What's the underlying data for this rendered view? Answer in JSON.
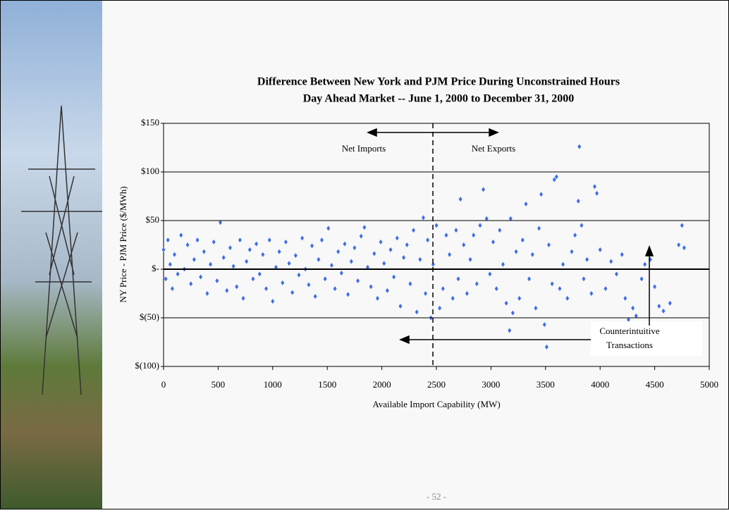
{
  "chart_data": {
    "type": "scatter",
    "title": "Difference Between New York and PJM Price During Unconstrained Hours",
    "subtitle": "Day Ahead Market -- June 1, 2000 to December 31, 2000",
    "x_label": "Available Import Capability (MW)",
    "y_label": "NY Price - PJM Price ($/MWh)",
    "annotations": [
      "Net Imports",
      "Net Exports",
      "Counterintuitive",
      "Transactions"
    ],
    "color": "#3f6fe8",
    "grid": true,
    "xlim": [
      0,
      5000
    ],
    "xticks": [
      0,
      500,
      1000,
      1500,
      2000,
      2500,
      3000,
      3500,
      4000,
      4500,
      5000
    ],
    "ylim": [
      -100,
      150
    ],
    "yticks": [
      {
        "value": 150,
        "label": "$150"
      },
      {
        "value": 100,
        "label": "$100"
      },
      {
        "value": 50,
        "label": "$50"
      },
      {
        "value": 0,
        "label": "$-"
      },
      {
        "value": -50,
        "label": "$(50)"
      },
      {
        "value": -100,
        "label": "$(100)"
      }
    ],
    "x": [
      0,
      20,
      40,
      60,
      80,
      100,
      130,
      160,
      190,
      220,
      250,
      280,
      310,
      340,
      370,
      400,
      430,
      460,
      490,
      520,
      550,
      580,
      610,
      640,
      670,
      700,
      730,
      760,
      790,
      820,
      850,
      880,
      910,
      940,
      970,
      1000,
      1030,
      1060,
      1090,
      1120,
      1150,
      1180,
      1210,
      1240,
      1270,
      1300,
      1330,
      1360,
      1390,
      1420,
      1450,
      1480,
      1510,
      1540,
      1570,
      1600,
      1630,
      1660,
      1690,
      1720,
      1750,
      1780,
      1810,
      1840,
      1870,
      1900,
      1930,
      1960,
      1990,
      2020,
      2050,
      2080,
      2110,
      2140,
      2170,
      2200,
      2230,
      2260,
      2290,
      2320,
      2350,
      2380,
      2400,
      2420,
      2450,
      2470,
      2500,
      2530,
      2560,
      2590,
      2620,
      2650,
      2680,
      2700,
      2720,
      2750,
      2780,
      2810,
      2840,
      2870,
      2900,
      2930,
      2960,
      2990,
      3020,
      3050,
      3080,
      3110,
      3140,
      3170,
      3180,
      3200,
      3230,
      3260,
      3290,
      3320,
      3350,
      3380,
      3410,
      3440,
      3460,
      3490,
      3510,
      3530,
      3560,
      3580,
      3600,
      3630,
      3660,
      3700,
      3740,
      3770,
      3800,
      3810,
      3830,
      3850,
      3880,
      3920,
      3950,
      3970,
      4000,
      4050,
      4100,
      4150,
      4200,
      4230,
      4260,
      4300,
      4330,
      4380,
      4410,
      4460,
      4500,
      4540,
      4580,
      4640,
      4720,
      4750,
      4770
    ],
    "values": [
      20,
      -10,
      30,
      5,
      -20,
      15,
      -5,
      35,
      0,
      25,
      -15,
      10,
      30,
      -8,
      18,
      -25,
      5,
      28,
      -12,
      48,
      12,
      -22,
      22,
      3,
      -18,
      30,
      -30,
      8,
      20,
      -10,
      26,
      -5,
      15,
      -20,
      30,
      -33,
      2,
      18,
      -14,
      28,
      6,
      -24,
      14,
      -6,
      32,
      0,
      -16,
      24,
      -28,
      10,
      30,
      -10,
      42,
      4,
      -20,
      18,
      -4,
      26,
      -26,
      8,
      22,
      -12,
      34,
      43,
      2,
      -18,
      16,
      -30,
      28,
      6,
      -22,
      20,
      -8,
      32,
      -38,
      12,
      25,
      -15,
      40,
      -44,
      10,
      53,
      -25,
      30,
      -50,
      5,
      45,
      -40,
      -20,
      35,
      15,
      -30,
      40,
      -10,
      72,
      25,
      -25,
      10,
      35,
      -15,
      45,
      82,
      52,
      -5,
      28,
      -20,
      40,
      5,
      -35,
      -63,
      52,
      -45,
      18,
      -30,
      30,
      67,
      -10,
      15,
      -40,
      42,
      77,
      -57,
      -80,
      25,
      -15,
      92,
      95,
      -20,
      5,
      -30,
      18,
      35,
      70,
      126,
      45,
      -10,
      10,
      -25,
      85,
      78,
      20,
      -20,
      8,
      -5,
      15,
      -30,
      -52,
      -40,
      -48,
      -10,
      5,
      10,
      -18,
      -38,
      -43,
      -35,
      25,
      45,
      22
    ]
  },
  "footer": {
    "page": "- 52 -"
  }
}
